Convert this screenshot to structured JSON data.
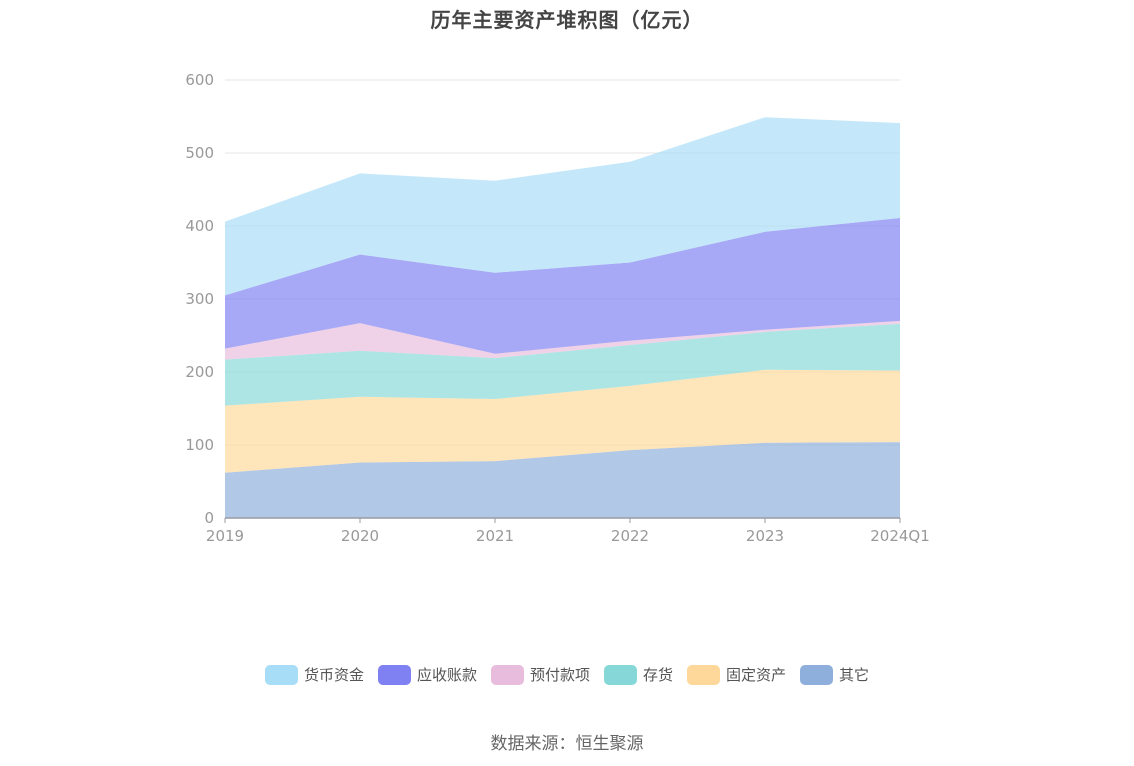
{
  "chart_data": {
    "type": "area",
    "stacked": true,
    "title": "历年主要资产堆积图（亿元）",
    "categories": [
      "2019",
      "2020",
      "2021",
      "2022",
      "2023",
      "2024Q1"
    ],
    "y_ticks": [
      "0",
      "100",
      "200",
      "300",
      "400",
      "500",
      "600"
    ],
    "ylim": [
      0,
      600
    ],
    "grid": true,
    "legend_position": "bottom",
    "series": [
      {
        "name": "其它",
        "color": "#8eaedb",
        "values": [
          62,
          76,
          78,
          93,
          103,
          104
        ]
      },
      {
        "name": "固定资产",
        "color": "#fdd89a",
        "values": [
          92,
          90,
          85,
          88,
          100,
          98
        ]
      },
      {
        "name": "存货",
        "color": "#86d8d8",
        "values": [
          63,
          63,
          56,
          56,
          52,
          64
        ]
      },
      {
        "name": "预付款项",
        "color": "#e8bcdd",
        "values": [
          15,
          38,
          6,
          6,
          3,
          4
        ]
      },
      {
        "name": "应收账款",
        "color": "#7f80f2",
        "values": [
          73,
          94,
          111,
          107,
          134,
          141
        ]
      },
      {
        "name": "货币资金",
        "color": "#a8ddf7",
        "values": [
          101,
          111,
          126,
          138,
          157,
          130
        ]
      }
    ]
  },
  "legend": [
    {
      "label": "货币资金",
      "color": "#a8ddf7"
    },
    {
      "label": "应收账款",
      "color": "#7f80f2"
    },
    {
      "label": "预付款项",
      "color": "#e8bcdd"
    },
    {
      "label": "存货",
      "color": "#86d8d8"
    },
    {
      "label": "固定资产",
      "color": "#fdd89a"
    },
    {
      "label": "其它",
      "color": "#8eaedb"
    }
  ],
  "source": "数据来源：恒生聚源"
}
